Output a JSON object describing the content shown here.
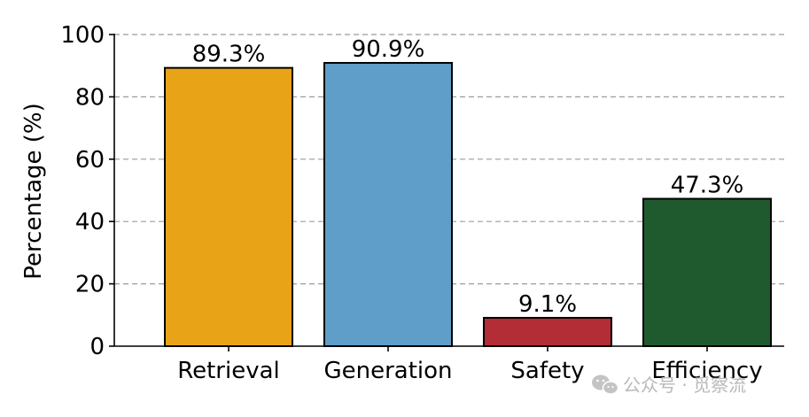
{
  "chart_data": {
    "type": "bar",
    "categories": [
      "Retrieval",
      "Generation",
      "Safety",
      "Efficiency"
    ],
    "values": [
      89.3,
      90.9,
      9.1,
      47.3
    ],
    "value_labels": [
      "89.3%",
      "90.9%",
      "9.1%",
      "47.3%"
    ],
    "bar_colors": [
      "#E8A317",
      "#5F9EC8",
      "#B32D36",
      "#1F5A2E"
    ],
    "ylabel": "Percentage (%)",
    "xlabel": "",
    "title": "",
    "ylim": [
      0,
      100
    ],
    "yticks": [
      0,
      20,
      40,
      60,
      80,
      100
    ],
    "grid": "horizontal dashed",
    "legend": "none"
  },
  "watermark": {
    "text": "公众号 · 觅察流",
    "icon": "wechat-icon"
  }
}
